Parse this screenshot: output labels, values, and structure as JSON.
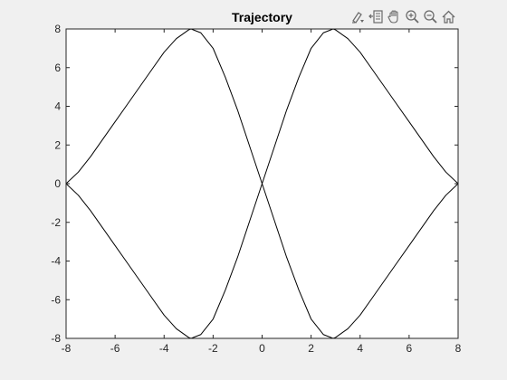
{
  "toolbar": {
    "icons": [
      "brush-icon",
      "data-tips-icon",
      "pan-hand-icon",
      "zoom-in-icon",
      "zoom-out-icon",
      "home-icon"
    ]
  },
  "colors": {
    "figure_bg": "#f0f0f0",
    "axes_bg": "#ffffff",
    "line": "#000000",
    "axis": "#262626",
    "icon": "#6a6a6a"
  },
  "chart_data": {
    "type": "line",
    "title": "Trajectory",
    "xlabel": "",
    "ylabel": "",
    "xlim": [
      -8,
      8
    ],
    "ylim": [
      -8,
      8
    ],
    "xticks": [
      -8,
      -6,
      -4,
      -2,
      0,
      2,
      4,
      6,
      8
    ],
    "yticks": [
      -8,
      -6,
      -4,
      -2,
      0,
      2,
      4,
      6,
      8
    ],
    "xtick_labels": [
      "-8",
      "-6",
      "-4",
      "-2",
      "0",
      "2",
      "4",
      "6",
      "8"
    ],
    "ytick_labels": [
      "-8",
      "-6",
      "-4",
      "-2",
      "0",
      "2",
      "4",
      "6",
      "8"
    ],
    "grid": false,
    "series": [
      {
        "x": [
          -8,
          -7.5,
          -7,
          -6.5,
          -6,
          -5.5,
          -5,
          -4.5,
          -4,
          -3.5,
          -3,
          -2.9,
          -2.5,
          -2,
          -1.5,
          -1,
          -0.5,
          0
        ],
        "y": [
          0,
          0.6,
          1.4,
          2.3,
          3.2,
          4.1,
          5.0,
          5.9,
          6.8,
          7.5,
          7.95,
          8.0,
          7.8,
          7.0,
          5.5,
          3.8,
          1.9,
          0
        ]
      },
      {
        "x": [
          -8,
          -7.5,
          -7,
          -6.5,
          -6,
          -5.5,
          -5,
          -4.5,
          -4,
          -3.5,
          -3,
          -2.9,
          -2.5,
          -2,
          -1.5,
          -1,
          -0.5,
          0
        ],
        "y": [
          0,
          -0.6,
          -1.4,
          -2.3,
          -3.2,
          -4.1,
          -5.0,
          -5.9,
          -6.8,
          -7.5,
          -7.95,
          -8.0,
          -7.8,
          -7.0,
          -5.5,
          -3.8,
          -1.9,
          0
        ]
      },
      {
        "x": [
          0,
          0.5,
          1,
          1.5,
          2,
          2.5,
          2.9,
          3,
          3.5,
          4,
          4.5,
          5,
          5.5,
          6,
          6.5,
          7,
          7.5,
          8
        ],
        "y": [
          0,
          1.9,
          3.8,
          5.5,
          7.0,
          7.8,
          8.0,
          7.95,
          7.5,
          6.8,
          5.9,
          5.0,
          4.1,
          3.2,
          2.3,
          1.4,
          0.6,
          0
        ]
      },
      {
        "x": [
          0,
          0.5,
          1,
          1.5,
          2,
          2.5,
          2.9,
          3,
          3.5,
          4,
          4.5,
          5,
          5.5,
          6,
          6.5,
          7,
          7.5,
          8
        ],
        "y": [
          0,
          -1.9,
          -3.8,
          -5.5,
          -7.0,
          -7.8,
          -8.0,
          -7.95,
          -7.5,
          -6.8,
          -5.9,
          -5.0,
          -4.1,
          -3.2,
          -2.3,
          -1.4,
          -0.6,
          0
        ]
      }
    ]
  }
}
